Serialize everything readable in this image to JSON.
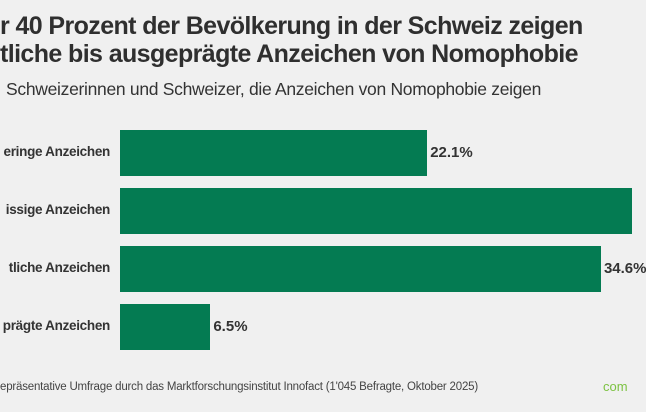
{
  "title_lines": [
    "r 40 Prozent der Bevölkerung in der Schweiz zeigen",
    "tliche bis ausgeprägte Anzeichen von Nomophobie"
  ],
  "subtitle": "Schweizerinnen und Schweizer, die Anzeichen von Nomophobie zeigen",
  "footer": "epräsentative Umfrage durch das Marktforschungsinstitut Innofact (1'045 Befragte, Oktober 2025)",
  "logo_text": "com",
  "colors": {
    "bar": "#047b52",
    "logo": "#7cc242",
    "background": "#f0f0f0"
  },
  "chart_data": {
    "type": "bar",
    "orientation": "horizontal",
    "categories": [
      "eringe Anzeichen",
      "issige Anzeichen",
      "tliche Anzeichen",
      "prägte Anzeichen"
    ],
    "values": [
      22.1,
      36.8,
      34.6,
      6.5
    ],
    "value_labels": [
      "22.1%",
      "",
      "34.6%",
      "6.5%"
    ],
    "unit": "%",
    "grid": false
  }
}
